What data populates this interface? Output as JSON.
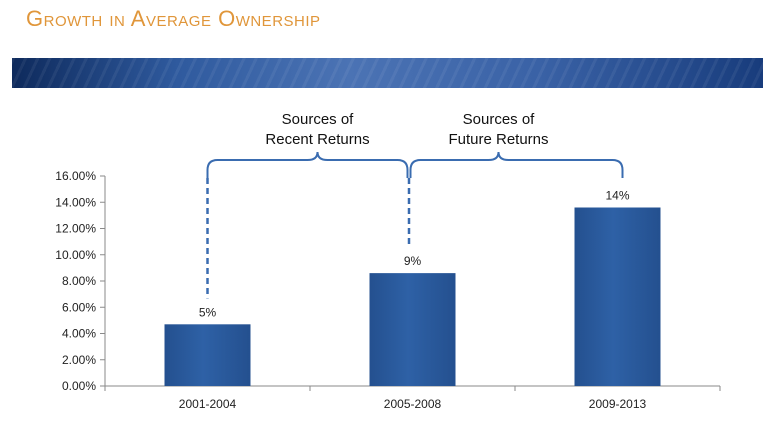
{
  "page": {
    "title": "Growth in Average Ownership"
  },
  "colors": {
    "title": "#E0963A",
    "bar": "#2E61A6",
    "bar_dark": "#24508F",
    "bracket": "#3A6CB0"
  },
  "brackets": [
    {
      "line1": "Sources of",
      "line2": "Recent Returns"
    },
    {
      "line1": "Sources of",
      "line2": "Future Returns"
    }
  ],
  "chart_data": {
    "type": "bar",
    "categories": [
      "2001-2004",
      "2005-2008",
      "2009-2013"
    ],
    "values": [
      4.7,
      8.6,
      13.6
    ],
    "data_labels": [
      "5%",
      "9%",
      "14%"
    ],
    "ylim": [
      0,
      16
    ],
    "yticks": [
      0,
      2,
      4,
      6,
      8,
      10,
      12,
      14,
      16
    ],
    "ytick_labels": [
      "0.00%",
      "2.00%",
      "4.00%",
      "6.00%",
      "8.00%",
      "10.00%",
      "12.00%",
      "14.00%",
      "16.00%"
    ],
    "title": "",
    "xlabel": "",
    "ylabel": "",
    "grid": false,
    "legend": "none"
  }
}
